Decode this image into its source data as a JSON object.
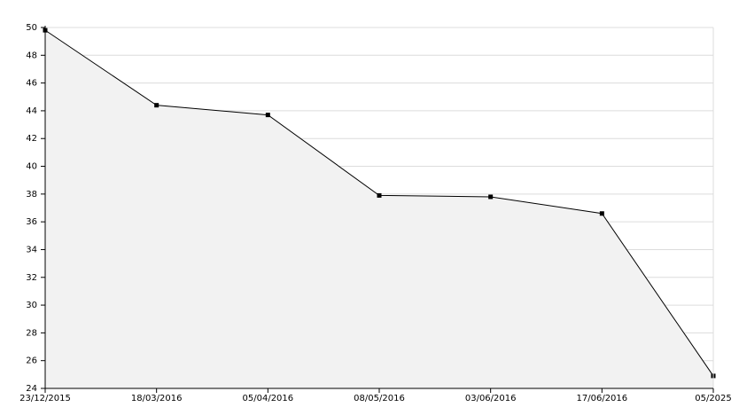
{
  "chart_data": {
    "type": "line",
    "categories": [
      "23/12/2015",
      "18/03/2016",
      "05/04/2016",
      "08/05/2016",
      "03/06/2016",
      "17/06/2016",
      "05/2025"
    ],
    "values": [
      49.8,
      44.4,
      43.7,
      37.9,
      37.8,
      36.6,
      24.9
    ],
    "color": "#000000",
    "area_color": "#f2f2f2",
    "ylim": [
      24,
      50
    ],
    "yticks": [
      24,
      26,
      28,
      30,
      32,
      34,
      36,
      38,
      40,
      42,
      44,
      46,
      48,
      50
    ],
    "grid": true
  }
}
